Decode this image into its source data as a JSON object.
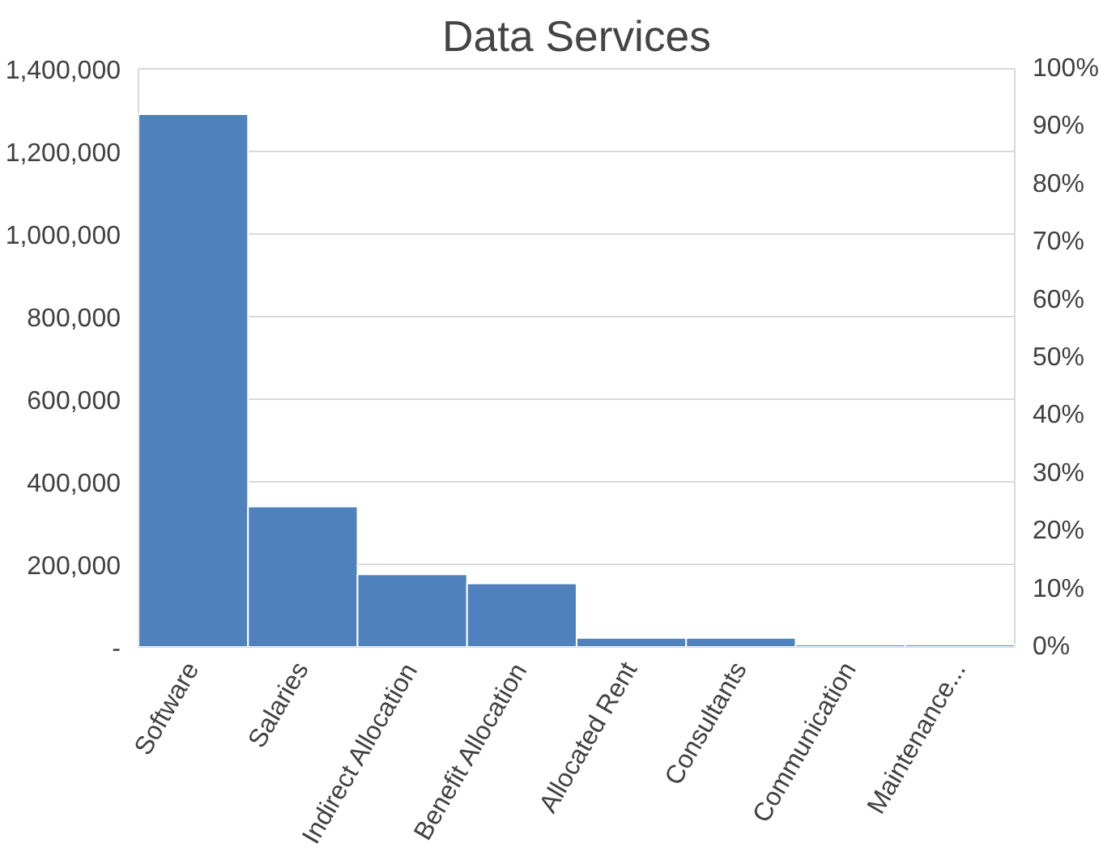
{
  "chart_data": {
    "type": "bar",
    "title": "Data Services",
    "categories": [
      "Software",
      "Salaries",
      "Indirect Allocation",
      "Benefit Allocation",
      "Allocated Rent",
      "Consultants",
      "Communication",
      "Maintenance..."
    ],
    "values": [
      1290000,
      340000,
      176000,
      154000,
      22000,
      22000,
      6000,
      6000
    ],
    "color": "#4f81bd",
    "ylim": [
      0,
      1400000
    ],
    "yticks": [
      {
        "value": 0,
        "label": "-"
      },
      {
        "value": 200000,
        "label": "200,000"
      },
      {
        "value": 400000,
        "label": "400,000"
      },
      {
        "value": 600000,
        "label": "600,000"
      },
      {
        "value": 800000,
        "label": "800,000"
      },
      {
        "value": 1000000,
        "label": "1,000,000"
      },
      {
        "value": 1200000,
        "label": "1,200,000"
      },
      {
        "value": 1400000,
        "label": "1,400,000"
      }
    ],
    "y2lim": [
      0,
      100
    ],
    "y2ticks": [
      {
        "value": 0,
        "label": "0%"
      },
      {
        "value": 10,
        "label": "10%"
      },
      {
        "value": 20,
        "label": "20%"
      },
      {
        "value": 30,
        "label": "30%"
      },
      {
        "value": 40,
        "label": "40%"
      },
      {
        "value": 50,
        "label": "50%"
      },
      {
        "value": 60,
        "label": "60%"
      },
      {
        "value": 70,
        "label": "70%"
      },
      {
        "value": 80,
        "label": "80%"
      },
      {
        "value": 90,
        "label": "90%"
      },
      {
        "value": 100,
        "label": "100%"
      }
    ],
    "grid": "y"
  }
}
